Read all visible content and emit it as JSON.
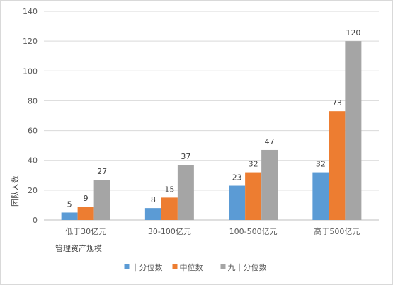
{
  "chart_data": {
    "type": "bar",
    "title": "",
    "xlabel": "管理资产规模",
    "ylabel": "团队人数",
    "ylim": [
      0,
      140
    ],
    "yticks": [
      0,
      20,
      40,
      60,
      80,
      100,
      120,
      140
    ],
    "grid": true,
    "legend_position": "bottom",
    "categories": [
      "低于30亿元",
      "30-100亿元",
      "100-500亿元",
      "高于500亿元"
    ],
    "series": [
      {
        "name": "十分位数",
        "color": "#5b9bd5",
        "values": [
          5,
          8,
          23,
          32
        ]
      },
      {
        "name": "中位数",
        "color": "#ed7d31",
        "values": [
          9,
          15,
          32,
          73
        ]
      },
      {
        "name": "九十分位数",
        "color": "#a5a5a5",
        "values": [
          27,
          37,
          47,
          120
        ]
      }
    ]
  }
}
